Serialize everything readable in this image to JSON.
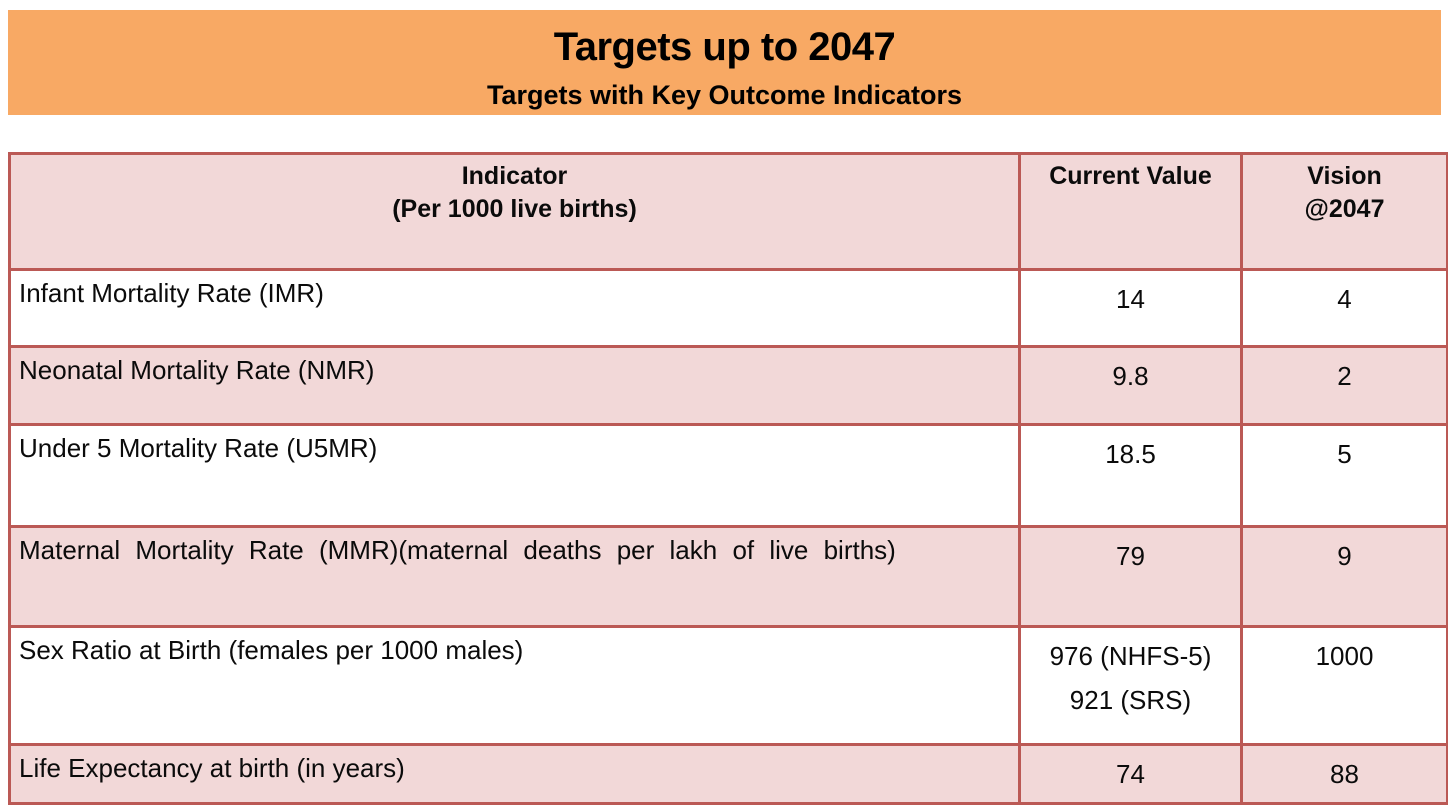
{
  "banner": {
    "title": "Targets up to 2047",
    "subtitle": "Targets with Key Outcome Indicators",
    "bg_color": "#F8A964"
  },
  "table": {
    "columns": [
      {
        "label": "Indicator\n(Per 1000 live births)"
      },
      {
        "label": "Current Value"
      },
      {
        "label": "Vision\n@2047"
      }
    ],
    "rows": [
      {
        "indicator": "Infant Mortality Rate (IMR)",
        "current_value": "14",
        "vision_2047": "4"
      },
      {
        "indicator": "Neonatal Mortality Rate (NMR)",
        "current_value": "9.8",
        "vision_2047": "2"
      },
      {
        "indicator": "Under 5 Mortality Rate (U5MR)",
        "current_value": "18.5",
        "vision_2047": "5"
      },
      {
        "indicator": "Maternal Mortality Rate (MMR)(maternal deaths per lakh of live births)",
        "current_value": "79",
        "vision_2047": "9"
      },
      {
        "indicator": "Sex Ratio at Birth (females per 1000 males)",
        "current_value": "976 (NHFS-5)\n921 (SRS)",
        "vision_2047": "1000"
      },
      {
        "indicator": "Life Expectancy at birth (in years)",
        "current_value": "74",
        "vision_2047": "88"
      }
    ],
    "colors": {
      "header_bg": "#F2D8D8",
      "alt_row_bg": "#F2D8D8",
      "row_bg": "#FFFFFF",
      "border": "#BB5955"
    }
  }
}
